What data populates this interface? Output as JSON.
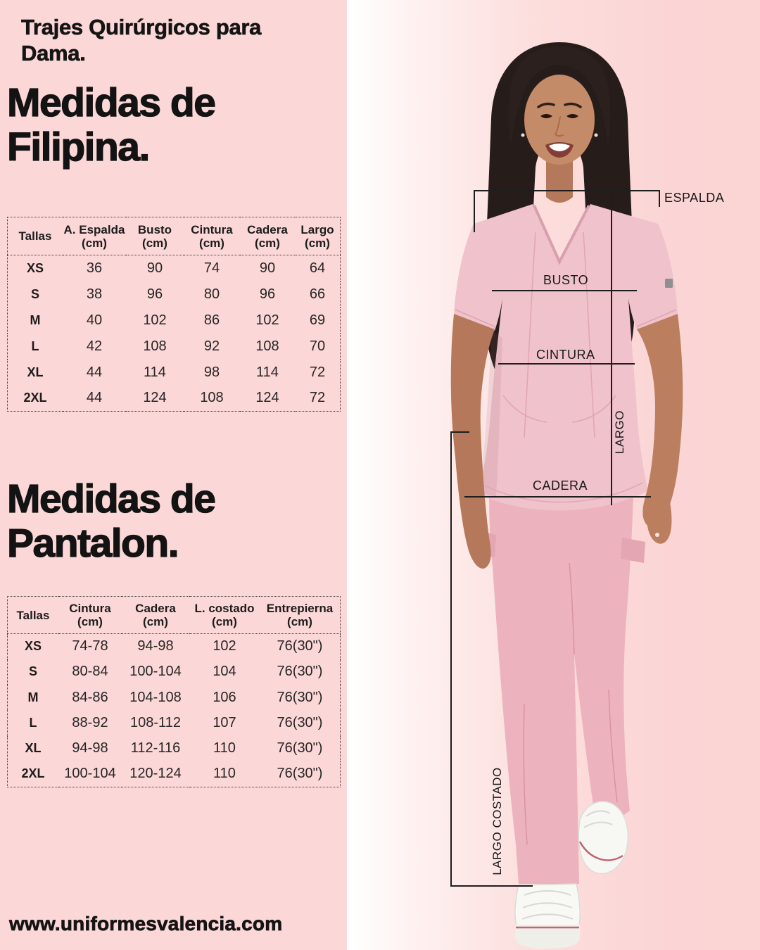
{
  "kicker": "Trajes Quirúrgicos para\nDama.",
  "headings": {
    "filipina": "Medidas de\nFilipina.",
    "pantalon": "Medidas de\nPantalon."
  },
  "filipina_table": {
    "headers": [
      {
        "label": "Tallas",
        "unit": ""
      },
      {
        "label": "A. Espalda",
        "unit": "(cm)"
      },
      {
        "label": "Busto",
        "unit": "(cm)"
      },
      {
        "label": "Cintura",
        "unit": "(cm)"
      },
      {
        "label": "Cadera",
        "unit": "(cm)"
      },
      {
        "label": "Largo",
        "unit": "(cm)"
      }
    ],
    "rows": [
      {
        "size": "XS",
        "values": [
          "36",
          "90",
          "74",
          "90",
          "64"
        ]
      },
      {
        "size": "S",
        "values": [
          "38",
          "96",
          "80",
          "96",
          "66"
        ]
      },
      {
        "size": "M",
        "values": [
          "40",
          "102",
          "86",
          "102",
          "69"
        ]
      },
      {
        "size": "L",
        "values": [
          "42",
          "108",
          "92",
          "108",
          "70"
        ]
      },
      {
        "size": "XL",
        "values": [
          "44",
          "114",
          "98",
          "114",
          "72"
        ]
      },
      {
        "size": "2XL",
        "values": [
          "44",
          "124",
          "108",
          "124",
          "72"
        ]
      }
    ]
  },
  "pantalon_table": {
    "headers": [
      {
        "label": "Tallas",
        "unit": ""
      },
      {
        "label": "Cintura",
        "unit": "(cm)"
      },
      {
        "label": "Cadera",
        "unit": "(cm)"
      },
      {
        "label": "L. costado",
        "unit": "(cm)"
      },
      {
        "label": "Entrepierna",
        "unit": "(cm)"
      }
    ],
    "rows": [
      {
        "size": "XS",
        "values": [
          "74-78",
          "94-98",
          "102",
          "76(30\")"
        ]
      },
      {
        "size": "S",
        "values": [
          "80-84",
          "100-104",
          "104",
          "76(30\")"
        ]
      },
      {
        "size": "M",
        "values": [
          "84-86",
          "104-108",
          "106",
          "76(30\")"
        ]
      },
      {
        "size": "L",
        "values": [
          "88-92",
          "108-112",
          "107",
          "76(30\")"
        ]
      },
      {
        "size": "XL",
        "values": [
          "94-98",
          "112-116",
          "110",
          "76(30\")"
        ]
      },
      {
        "size": "2XL",
        "values": [
          "100-104",
          "120-124",
          "110",
          "76(30\")"
        ]
      }
    ]
  },
  "measurement_labels": {
    "espalda": "ESPALDA",
    "busto": "BUSTO",
    "cintura": "CINTURA",
    "largo": "LARGO",
    "cadera": "CADERA",
    "largo_costado": "LARGO COSTADO"
  },
  "footer": {
    "website": "www.uniformesvalencia.com"
  },
  "colors": {
    "left_background": "#fcd7d7",
    "right_background_start": "#ffffff",
    "right_background_end": "#fbd4d4",
    "scrub_pink": "#f0c2cb",
    "pants_pink": "#ecb3be",
    "text": "#141414",
    "annotation_line": "#1e1e1e"
  }
}
